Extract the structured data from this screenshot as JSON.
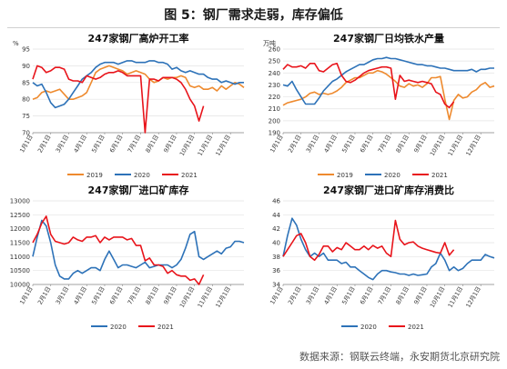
{
  "figure": {
    "title": "图 5：钢厂需求走弱，库存偏低",
    "source": "数据来源：钢联云终端，永安期货北京研究院"
  },
  "colors": {
    "y2019": "#ee8a2e",
    "y2020": "#2d72b8",
    "y2021": "#e8141b",
    "grid": "#e3e3e3",
    "axis": "#888888"
  },
  "chart_data": [
    {
      "type": "line",
      "title": "247家钢厂高炉开工率",
      "ylabel": "%",
      "ylim": [
        70,
        95
      ],
      "yticks": [
        70,
        75,
        80,
        85,
        90,
        95
      ],
      "categories": [
        "1月1日",
        "2月1日",
        "3月1日",
        "4月1日",
        "5月1日",
        "6月1日",
        "7月1日",
        "8月1日",
        "9月1日",
        "10月1日",
        "11月1日",
        "12月1日"
      ],
      "series": [
        {
          "name": "2019",
          "color_key": "y2019",
          "x": [
            0,
            0.25,
            0.5,
            0.75,
            1,
            1.25,
            1.5,
            1.75,
            2,
            2.25,
            2.5,
            2.75,
            3,
            3.25,
            3.5,
            3.75,
            4,
            4.25,
            4.5,
            4.75,
            5,
            5.25,
            5.5,
            5.75,
            6,
            6.25,
            6.5,
            6.75,
            7,
            7.25,
            7.5,
            7.75,
            8,
            8.25,
            8.5,
            8.75,
            9,
            9.25,
            9.5,
            9.75,
            10,
            10.25,
            10.5,
            10.75,
            11,
            11.25,
            11.5,
            11.75
          ],
          "values": [
            80,
            80.5,
            82,
            82.5,
            82,
            82.5,
            83,
            81.5,
            80,
            80,
            80.5,
            81,
            82,
            85,
            88,
            89,
            89.5,
            90,
            89.5,
            89,
            88.5,
            87.5,
            88,
            88.5,
            88,
            87.5,
            86,
            85,
            85.5,
            86.5,
            86,
            86.5,
            86.5,
            87,
            86.5,
            84,
            83.5,
            84,
            83,
            83,
            83.5,
            82.5,
            84,
            83,
            84,
            85,
            84.5,
            83.5
          ]
        },
        {
          "name": "2020",
          "color_key": "y2020",
          "x": [
            0,
            0.25,
            0.5,
            0.75,
            1,
            1.25,
            1.5,
            1.75,
            2,
            2.25,
            2.5,
            2.75,
            3,
            3.25,
            3.5,
            3.75,
            4,
            4.25,
            4.5,
            4.75,
            5,
            5.25,
            5.5,
            5.75,
            6,
            6.25,
            6.5,
            6.75,
            7,
            7.25,
            7.5,
            7.75,
            8,
            8.25,
            8.5,
            8.75,
            9,
            9.25,
            9.5,
            9.75,
            10,
            10.25,
            10.5,
            10.75,
            11,
            11.25,
            11.5,
            11.75
          ],
          "values": [
            85,
            84,
            84.5,
            82,
            79,
            77.5,
            78,
            78.5,
            80,
            82,
            84,
            86,
            87,
            88,
            89.5,
            90.5,
            91,
            91,
            91,
            90.5,
            91,
            91.5,
            91.5,
            91,
            91,
            91,
            91.5,
            91.5,
            91,
            91,
            90.5,
            89,
            89.5,
            88.5,
            88,
            88.5,
            88,
            87.5,
            87.5,
            86.5,
            86,
            86,
            85,
            85.5,
            85,
            84.5,
            85,
            85
          ]
        },
        {
          "name": "2021",
          "color_key": "y2021",
          "x": [
            0,
            0.25,
            0.5,
            0.75,
            1,
            1.25,
            1.5,
            1.75,
            2,
            2.25,
            2.5,
            2.75,
            3,
            3.25,
            3.5,
            3.75,
            4,
            4.25,
            4.5,
            4.75,
            5,
            5.25,
            5.5,
            5.75,
            6,
            6.25,
            6.5,
            6.75,
            7,
            7.25,
            7.5,
            7.75,
            8,
            8.25,
            8.5,
            8.75,
            9,
            9.25,
            9.5
          ],
          "values": [
            86,
            90,
            89.5,
            88,
            88.5,
            89.5,
            89.5,
            89,
            86,
            85.5,
            85.5,
            85,
            87,
            86.5,
            86,
            86.5,
            87.5,
            88,
            88,
            88.5,
            88,
            87,
            87,
            87,
            87,
            70,
            86,
            86,
            85.5,
            86.5,
            86.5,
            86.5,
            86,
            85,
            83,
            80,
            78,
            73.5,
            78
          ]
        }
      ]
    },
    {
      "type": "line",
      "title": "247家钢厂日均铁水产量",
      "ylabel": "万吨",
      "ylim": [
        190,
        260
      ],
      "yticks": [
        190,
        200,
        210,
        220,
        230,
        240,
        250,
        260
      ],
      "categories": [
        "1月1日",
        "2月1日",
        "3月1日",
        "4月1日",
        "5月1日",
        "6月1日",
        "7月1日",
        "8月1日",
        "9月1日",
        "10月1日",
        "11月1日",
        "12月1日"
      ],
      "series": [
        {
          "name": "2019",
          "color_key": "y2019",
          "x": [
            0,
            0.25,
            0.5,
            0.75,
            1,
            1.25,
            1.5,
            1.75,
            2,
            2.25,
            2.5,
            2.75,
            3,
            3.25,
            3.5,
            3.75,
            4,
            4.25,
            4.5,
            4.75,
            5,
            5.25,
            5.5,
            5.75,
            6,
            6.25,
            6.5,
            6.75,
            7,
            7.25,
            7.5,
            7.75,
            8,
            8.25,
            8.5,
            8.75,
            9,
            9.25,
            9.5,
            9.75,
            10,
            10.25,
            10.5,
            10.75,
            11,
            11.25,
            11.5,
            11.75
          ],
          "values": [
            213,
            215,
            216,
            217,
            218,
            220,
            223,
            224,
            222,
            223,
            222,
            223,
            225,
            228,
            232,
            234,
            236,
            236,
            238,
            240,
            240,
            242,
            241,
            239,
            236,
            233,
            229,
            228,
            231,
            229,
            230,
            228,
            231,
            236,
            236,
            237,
            218,
            201,
            217,
            222,
            219,
            220,
            224,
            226,
            230,
            232,
            228,
            229
          ]
        },
        {
          "name": "2020",
          "color_key": "y2020",
          "x": [
            0,
            0.25,
            0.5,
            0.75,
            1,
            1.25,
            1.5,
            1.75,
            2,
            2.25,
            2.5,
            2.75,
            3,
            3.25,
            3.5,
            3.75,
            4,
            4.25,
            4.5,
            4.75,
            5,
            5.25,
            5.5,
            5.75,
            6,
            6.25,
            6.5,
            6.75,
            7,
            7.25,
            7.5,
            7.75,
            8,
            8.25,
            8.5,
            8.75,
            9,
            9.25,
            9.5,
            9.75,
            10,
            10.25,
            10.5,
            10.75,
            11,
            11.25,
            11.5,
            11.75
          ],
          "values": [
            230,
            229,
            233,
            226,
            220,
            214,
            214,
            214,
            219,
            225,
            229,
            233,
            235,
            238,
            241,
            243,
            245,
            247,
            247,
            249,
            251,
            252,
            252,
            253,
            252,
            252,
            251,
            250,
            249,
            248,
            247,
            247,
            246,
            246,
            245,
            244,
            244,
            243,
            242,
            242,
            242,
            242,
            243,
            241,
            243,
            243,
            244,
            244
          ]
        },
        {
          "name": "2021",
          "color_key": "y2021",
          "x": [
            0,
            0.25,
            0.5,
            0.75,
            1,
            1.25,
            1.5,
            1.75,
            2,
            2.25,
            2.5,
            2.75,
            3,
            3.25,
            3.5,
            3.75,
            4,
            4.25,
            4.5,
            4.75,
            5,
            5.25,
            5.5,
            5.75,
            6,
            6.25,
            6.5,
            6.75,
            7,
            7.25,
            7.5,
            7.75,
            8,
            8.25,
            8.5,
            8.75,
            9,
            9.25,
            9.5
          ],
          "values": [
            243,
            247,
            245,
            245,
            246,
            244,
            248,
            248,
            242,
            241,
            244,
            247,
            248,
            238,
            233,
            232,
            234,
            237,
            240,
            242,
            243,
            244,
            245,
            245,
            244,
            218,
            238,
            233,
            234,
            233,
            232,
            233,
            232,
            231,
            224,
            222,
            214,
            211,
            216
          ]
        }
      ]
    },
    {
      "type": "line",
      "title": "247家钢厂进口矿库存",
      "ylabel": "",
      "ylim": [
        10000,
        13000
      ],
      "yticks": [
        10000,
        10500,
        11000,
        11500,
        12000,
        12500,
        13000
      ],
      "categories": [
        "1月1日",
        "2月1日",
        "3月1日",
        "4月1日",
        "5月1日",
        "6月1日",
        "7月1日",
        "8月1日",
        "9月1日",
        "10月1日",
        "11月1日",
        "12月1日"
      ],
      "series": [
        {
          "name": "2020",
          "color_key": "y2020",
          "x": [
            0,
            0.25,
            0.5,
            0.75,
            1,
            1.25,
            1.5,
            1.75,
            2,
            2.25,
            2.5,
            2.75,
            3,
            3.25,
            3.5,
            3.75,
            4,
            4.25,
            4.5,
            4.75,
            5,
            5.25,
            5.5,
            5.75,
            6,
            6.25,
            6.5,
            6.75,
            7,
            7.25,
            7.5,
            7.75,
            8,
            8.25,
            8.5,
            8.75,
            9,
            9.25,
            9.5,
            9.75,
            10,
            10.25,
            10.5,
            10.75,
            11,
            11.25,
            11.5,
            11.75
          ],
          "values": [
            11000,
            11700,
            12300,
            12100,
            11500,
            10700,
            10300,
            10200,
            10200,
            10400,
            10500,
            10400,
            10500,
            10600,
            10600,
            10500,
            10900,
            11200,
            10900,
            10600,
            10700,
            10700,
            10650,
            10600,
            10700,
            10800,
            10600,
            10650,
            10700,
            10700,
            10700,
            10600,
            10700,
            10900,
            11300,
            11800,
            11900,
            11000,
            10900,
            11000,
            11100,
            11200,
            11100,
            11300,
            11350,
            11550,
            11550,
            11500
          ]
        },
        {
          "name": "2021",
          "color_key": "y2021",
          "x": [
            0,
            0.25,
            0.5,
            0.75,
            1,
            1.25,
            1.5,
            1.75,
            2,
            2.25,
            2.5,
            2.75,
            3,
            3.25,
            3.5,
            3.75,
            4,
            4.25,
            4.5,
            4.75,
            5,
            5.25,
            5.5,
            5.75,
            6,
            6.25,
            6.5,
            6.75,
            7,
            7.25,
            7.5,
            7.75,
            8,
            8.25,
            8.5,
            8.75,
            9,
            9.25,
            9.5
          ],
          "values": [
            11500,
            11800,
            12200,
            12450,
            11800,
            11550,
            11500,
            11450,
            11500,
            11700,
            11600,
            11550,
            11700,
            11700,
            11750,
            11500,
            11700,
            11600,
            11700,
            11700,
            11700,
            11600,
            11650,
            11400,
            11400,
            10850,
            10950,
            10700,
            10700,
            10650,
            10400,
            10500,
            10350,
            10300,
            10300,
            10150,
            10200,
            10000,
            10350
          ]
        }
      ]
    },
    {
      "type": "line",
      "title": "247家钢厂进口矿库存消费比",
      "ylabel": "",
      "ylim": [
        34,
        46
      ],
      "yticks": [
        34,
        36,
        38,
        40,
        42,
        44,
        46
      ],
      "categories": [
        "1月1日",
        "2月1日",
        "3月1日",
        "4月1日",
        "5月1日",
        "6月1日",
        "7月1日",
        "8月1日",
        "9月1日",
        "10月1日",
        "11月1日",
        "12月1日"
      ],
      "series": [
        {
          "name": "2020",
          "color_key": "y2020",
          "x": [
            0,
            0.25,
            0.5,
            0.75,
            1,
            1.25,
            1.5,
            1.75,
            2,
            2.25,
            2.5,
            2.75,
            3,
            3.25,
            3.5,
            3.75,
            4,
            4.25,
            4.5,
            4.75,
            5,
            5.25,
            5.5,
            5.75,
            6,
            6.25,
            6.5,
            6.75,
            7,
            7.25,
            7.5,
            7.75,
            8,
            8.25,
            8.5,
            8.75,
            9,
            9.25,
            9.5,
            9.75,
            10,
            10.25,
            10.5,
            10.75,
            11,
            11.25,
            11.5,
            11.75
          ],
          "values": [
            38,
            41,
            43.5,
            42.5,
            40.5,
            39,
            38,
            38.5,
            38,
            38.5,
            37.5,
            37.5,
            37.5,
            37,
            37.2,
            36.5,
            36.5,
            36,
            35.5,
            35,
            34.7,
            35.5,
            36,
            36,
            35.8,
            35.7,
            35.5,
            35.5,
            35.3,
            35.5,
            35.3,
            35.4,
            35.5,
            36.5,
            37,
            38.5,
            37.5,
            36,
            36.5,
            36,
            36.3,
            37,
            37.5,
            37.5,
            37.5,
            38.3,
            38,
            37.8
          ]
        },
        {
          "name": "2021",
          "color_key": "y2021",
          "x": [
            0,
            0.25,
            0.5,
            0.75,
            1,
            1.25,
            1.5,
            1.75,
            2,
            2.25,
            2.5,
            2.75,
            3,
            3.25,
            3.5,
            3.75,
            4,
            4.25,
            4.5,
            4.75,
            5,
            5.25,
            5.5,
            5.75,
            6,
            6.25,
            6.5,
            6.75,
            7,
            7.25,
            7.5,
            7.75,
            8,
            8.25,
            8.5,
            8.75,
            9,
            9.25,
            9.5
          ],
          "values": [
            38,
            39,
            40,
            41,
            41.3,
            40,
            38,
            37.5,
            38.3,
            39.5,
            39.5,
            38.7,
            39.3,
            39,
            40,
            39.5,
            39,
            39,
            39.5,
            39,
            39.6,
            39.2,
            39.5,
            38.5,
            38,
            43.2,
            40.5,
            39.7,
            40,
            40.1,
            39.5,
            39.2,
            39,
            38.8,
            38.6,
            38.5,
            40,
            38.2,
            39
          ]
        }
      ]
    }
  ]
}
